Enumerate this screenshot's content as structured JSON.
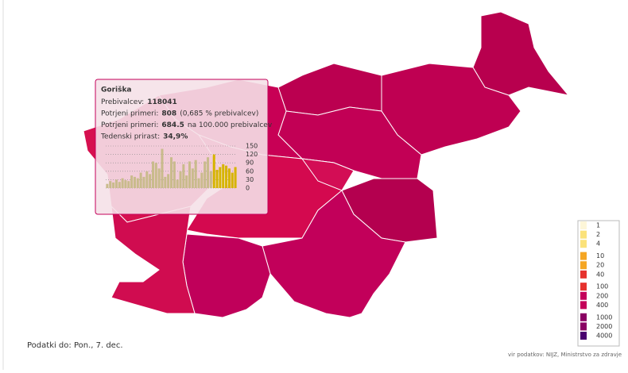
{
  "tooltip": {
    "title": "Goriška",
    "lines": [
      {
        "label": "Prebivalcev:",
        "value": "118041"
      },
      {
        "label": "Potrjeni primeri:",
        "value": "808",
        "suffix": "(0,685 % prebivalcev)"
      },
      {
        "label": "Potrjeni primeri:",
        "value": "684.5",
        "suffix": "na 100.000 prebivalcev"
      },
      {
        "label": "Tedenski prirast:",
        "value": "34,9%"
      }
    ],
    "chart_data": {
      "type": "bar",
      "ylim": [
        0,
        150
      ],
      "yticks": [
        0,
        30,
        60,
        90,
        120,
        150
      ],
      "grid": true,
      "series": [
        {
          "color": "#c9bb8c",
          "values": [
            15,
            25,
            20,
            30,
            22,
            35,
            28,
            25,
            45,
            40,
            35,
            55,
            40,
            60,
            50,
            95,
            90,
            70,
            140,
            40,
            50,
            110,
            95,
            30,
            60,
            85,
            45,
            95,
            70,
            100,
            35,
            55,
            95,
            110,
            60,
            null,
            null,
            null,
            null,
            null,
            null,
            null,
            null
          ]
        },
        {
          "color": "#d6b400",
          "values": [
            null,
            null,
            null,
            null,
            null,
            null,
            null,
            null,
            null,
            null,
            null,
            null,
            null,
            null,
            null,
            null,
            null,
            null,
            null,
            null,
            null,
            null,
            null,
            null,
            null,
            null,
            null,
            null,
            null,
            null,
            null,
            null,
            null,
            null,
            null,
            120,
            65,
            75,
            85,
            80,
            70,
            55,
            75
          ]
        }
      ]
    }
  },
  "legend": {
    "scale": "log",
    "lim": [
      1,
      4000
    ],
    "ticks": [
      1,
      2,
      4,
      10,
      20,
      40,
      100,
      200,
      400,
      1000,
      2000,
      4000
    ]
  },
  "footer": {
    "data_date": "Podatki do: Pon., 7. dec.",
    "source": "vir podatkov: NIJZ, Ministrstvo za zdravje"
  }
}
